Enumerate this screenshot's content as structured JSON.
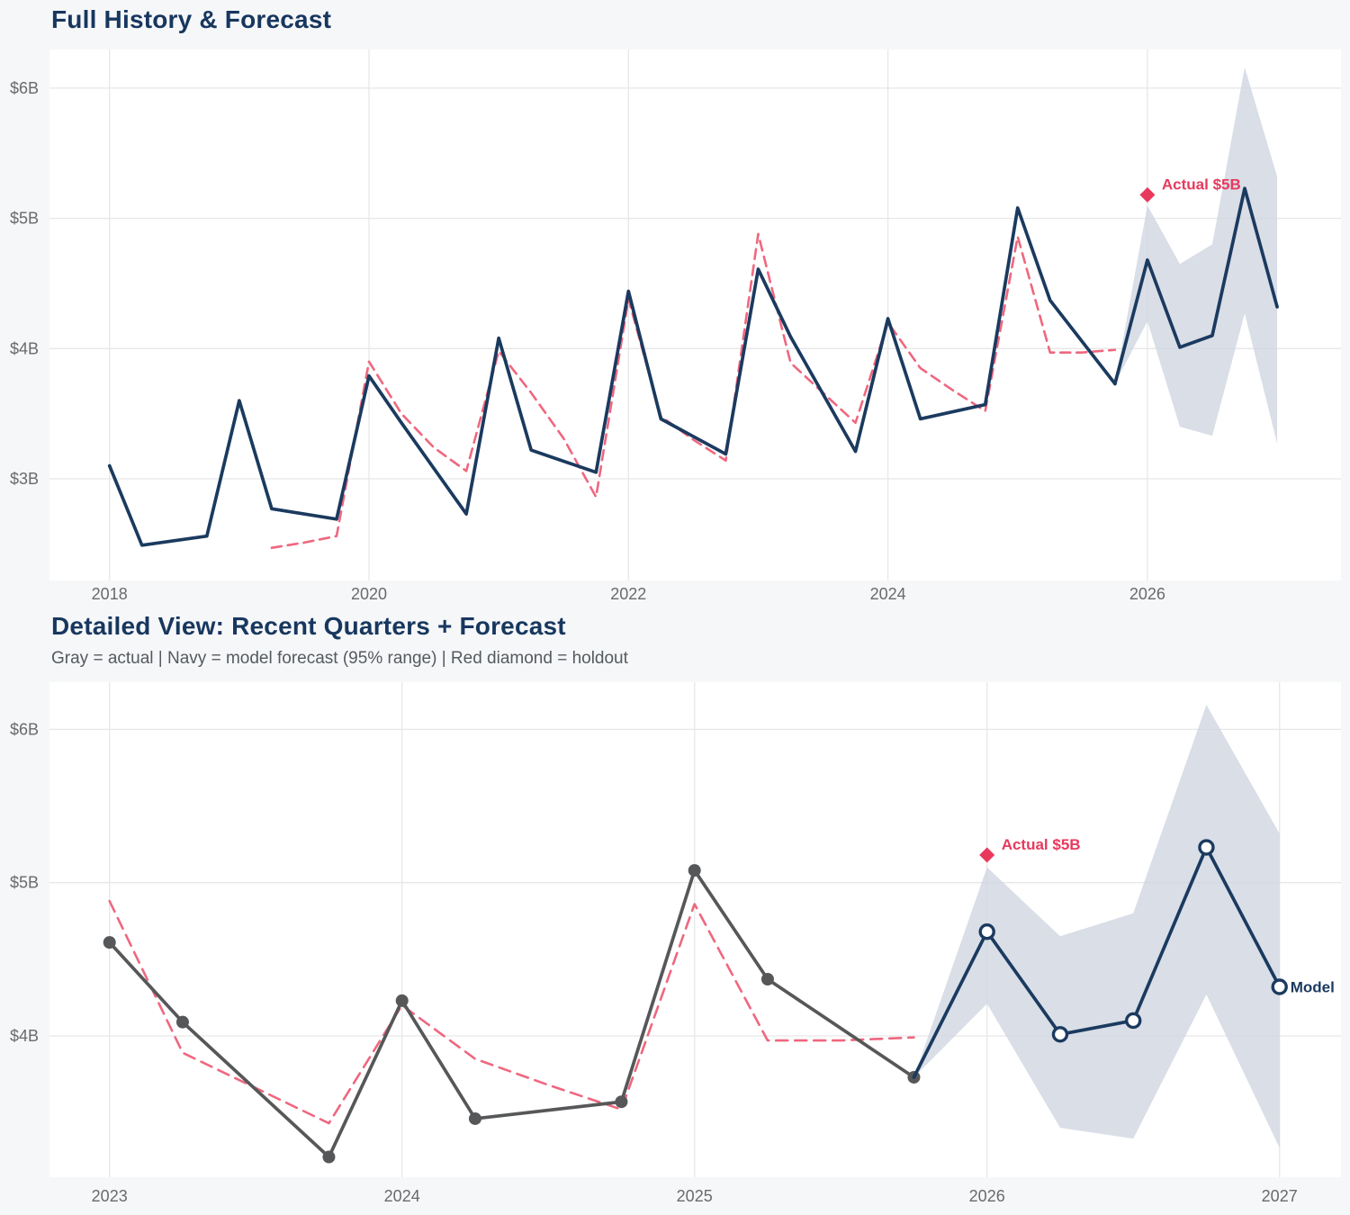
{
  "page": {
    "background": "#f6f7f9"
  },
  "colors": {
    "navy": "#1b3a5f",
    "title_navy": "#17375e",
    "pink": "#ef677f",
    "crimson": "#e8395c",
    "gray": "#565759",
    "band": "#cfd6e1",
    "grid": "#e7e7e7",
    "tick": "#6a6a6a",
    "plot_bg": "#ffffff",
    "subtitle_gray": "#555a5f"
  },
  "chart_data": [
    {
      "type": "line",
      "title": "Full History & Forecast",
      "x_ticks": [
        "2018",
        "2020",
        "2022",
        "2024",
        "2026"
      ],
      "y_ticks": [
        "$6B",
        "$5B",
        "$4B",
        "$3B"
      ],
      "series": [
        {
          "name": "model-fit",
          "role": "fit",
          "marker": "none",
          "x": [
            2019.25,
            2019.5,
            2019.75,
            2020.0,
            2020.25,
            2020.5,
            2020.75,
            2021.0,
            2021.25,
            2021.5,
            2021.75,
            2022.0,
            2022.25,
            2022.5,
            2022.75,
            2023.0,
            2023.25,
            2023.5,
            2023.75,
            2024.0,
            2024.25,
            2024.5,
            2024.75,
            2025.0,
            2025.25,
            2025.5,
            2025.75
          ],
          "y": [
            2.47,
            2.51,
            2.56,
            3.9,
            3.5,
            3.24,
            3.06,
            3.98,
            3.66,
            3.31,
            2.86,
            4.38,
            3.48,
            3.3,
            3.14,
            4.88,
            3.89,
            3.66,
            3.43,
            4.2,
            3.85,
            3.68,
            3.52,
            4.86,
            3.97,
            3.97,
            3.99
          ]
        },
        {
          "name": "actual",
          "role": "actual",
          "marker": "none",
          "x": [
            2018.0,
            2018.25,
            2018.75,
            2019.0,
            2019.25,
            2019.75,
            2020.0,
            2020.25,
            2020.75,
            2021.0,
            2021.25,
            2021.75,
            2022.0,
            2022.25,
            2022.75,
            2023.0,
            2023.25,
            2023.75,
            2024.0,
            2024.25,
            2024.75,
            2025.0,
            2025.25,
            2025.75
          ],
          "y": [
            3.1,
            2.49,
            2.56,
            3.6,
            2.77,
            2.69,
            3.79,
            3.43,
            2.73,
            4.08,
            3.22,
            3.05,
            4.44,
            3.46,
            3.19,
            4.61,
            4.09,
            3.21,
            4.23,
            3.46,
            3.57,
            5.08,
            4.37,
            3.73
          ]
        },
        {
          "name": "forecast",
          "role": "forecast",
          "marker": "none",
          "x": [
            2025.75,
            2026.0,
            2026.25,
            2026.5,
            2026.75,
            2027.0
          ],
          "y": [
            3.73,
            4.68,
            4.01,
            4.1,
            5.23,
            4.32
          ]
        }
      ],
      "band": {
        "x": [
          2025.75,
          2026.0,
          2026.25,
          2026.5,
          2026.75,
          2027.0
        ],
        "lower": [
          3.73,
          4.21,
          3.4,
          3.33,
          4.27,
          3.27
        ],
        "upper": [
          3.73,
          5.1,
          4.65,
          4.8,
          6.16,
          5.32
        ]
      },
      "holdout": {
        "x": 2026.0,
        "y": 5.18,
        "label": "Actual $5B"
      }
    },
    {
      "type": "line",
      "title": "Detailed View: Recent Quarters + Forecast",
      "subtitle": "Gray = actual  |  Navy = model forecast (95% range)  |  Red diamond = holdout",
      "x_ticks": [
        "2023",
        "2024",
        "2025",
        "2026",
        "2027"
      ],
      "y_ticks": [
        "$6B",
        "$5B",
        "$4B"
      ],
      "series": [
        {
          "name": "model-fit",
          "role": "fit",
          "marker": "none",
          "x": [
            2023.0,
            2023.25,
            2023.5,
            2023.75,
            2024.0,
            2024.25,
            2024.5,
            2024.75,
            2025.0,
            2025.25,
            2025.5,
            2025.75
          ],
          "y": [
            4.88,
            3.89,
            3.66,
            3.43,
            4.2,
            3.85,
            3.68,
            3.52,
            4.86,
            3.97,
            3.97,
            3.99
          ]
        },
        {
          "name": "actual",
          "role": "actual",
          "marker": "dot",
          "x": [
            2023.0,
            2023.25,
            2023.75,
            2024.0,
            2024.25,
            2024.75,
            2025.0,
            2025.25,
            2025.75
          ],
          "y": [
            4.61,
            4.09,
            3.21,
            4.23,
            3.46,
            3.57,
            5.08,
            4.37,
            3.73
          ]
        },
        {
          "name": "forecast",
          "role": "forecast",
          "marker": "circle",
          "marker_skip_first": true,
          "end_label": "Model",
          "x": [
            2025.75,
            2026.0,
            2026.25,
            2026.5,
            2026.75,
            2027.0
          ],
          "y": [
            3.73,
            4.68,
            4.01,
            4.1,
            5.23,
            4.32
          ]
        }
      ],
      "band": {
        "x": [
          2025.75,
          2026.0,
          2026.25,
          2026.5,
          2026.75,
          2027.0
        ],
        "lower": [
          3.73,
          4.21,
          3.4,
          3.33,
          4.27,
          3.27
        ],
        "upper": [
          3.73,
          5.1,
          4.65,
          4.8,
          6.16,
          5.32
        ]
      },
      "holdout": {
        "x": 2026.0,
        "y": 5.18,
        "label": "Actual $5B"
      }
    }
  ]
}
